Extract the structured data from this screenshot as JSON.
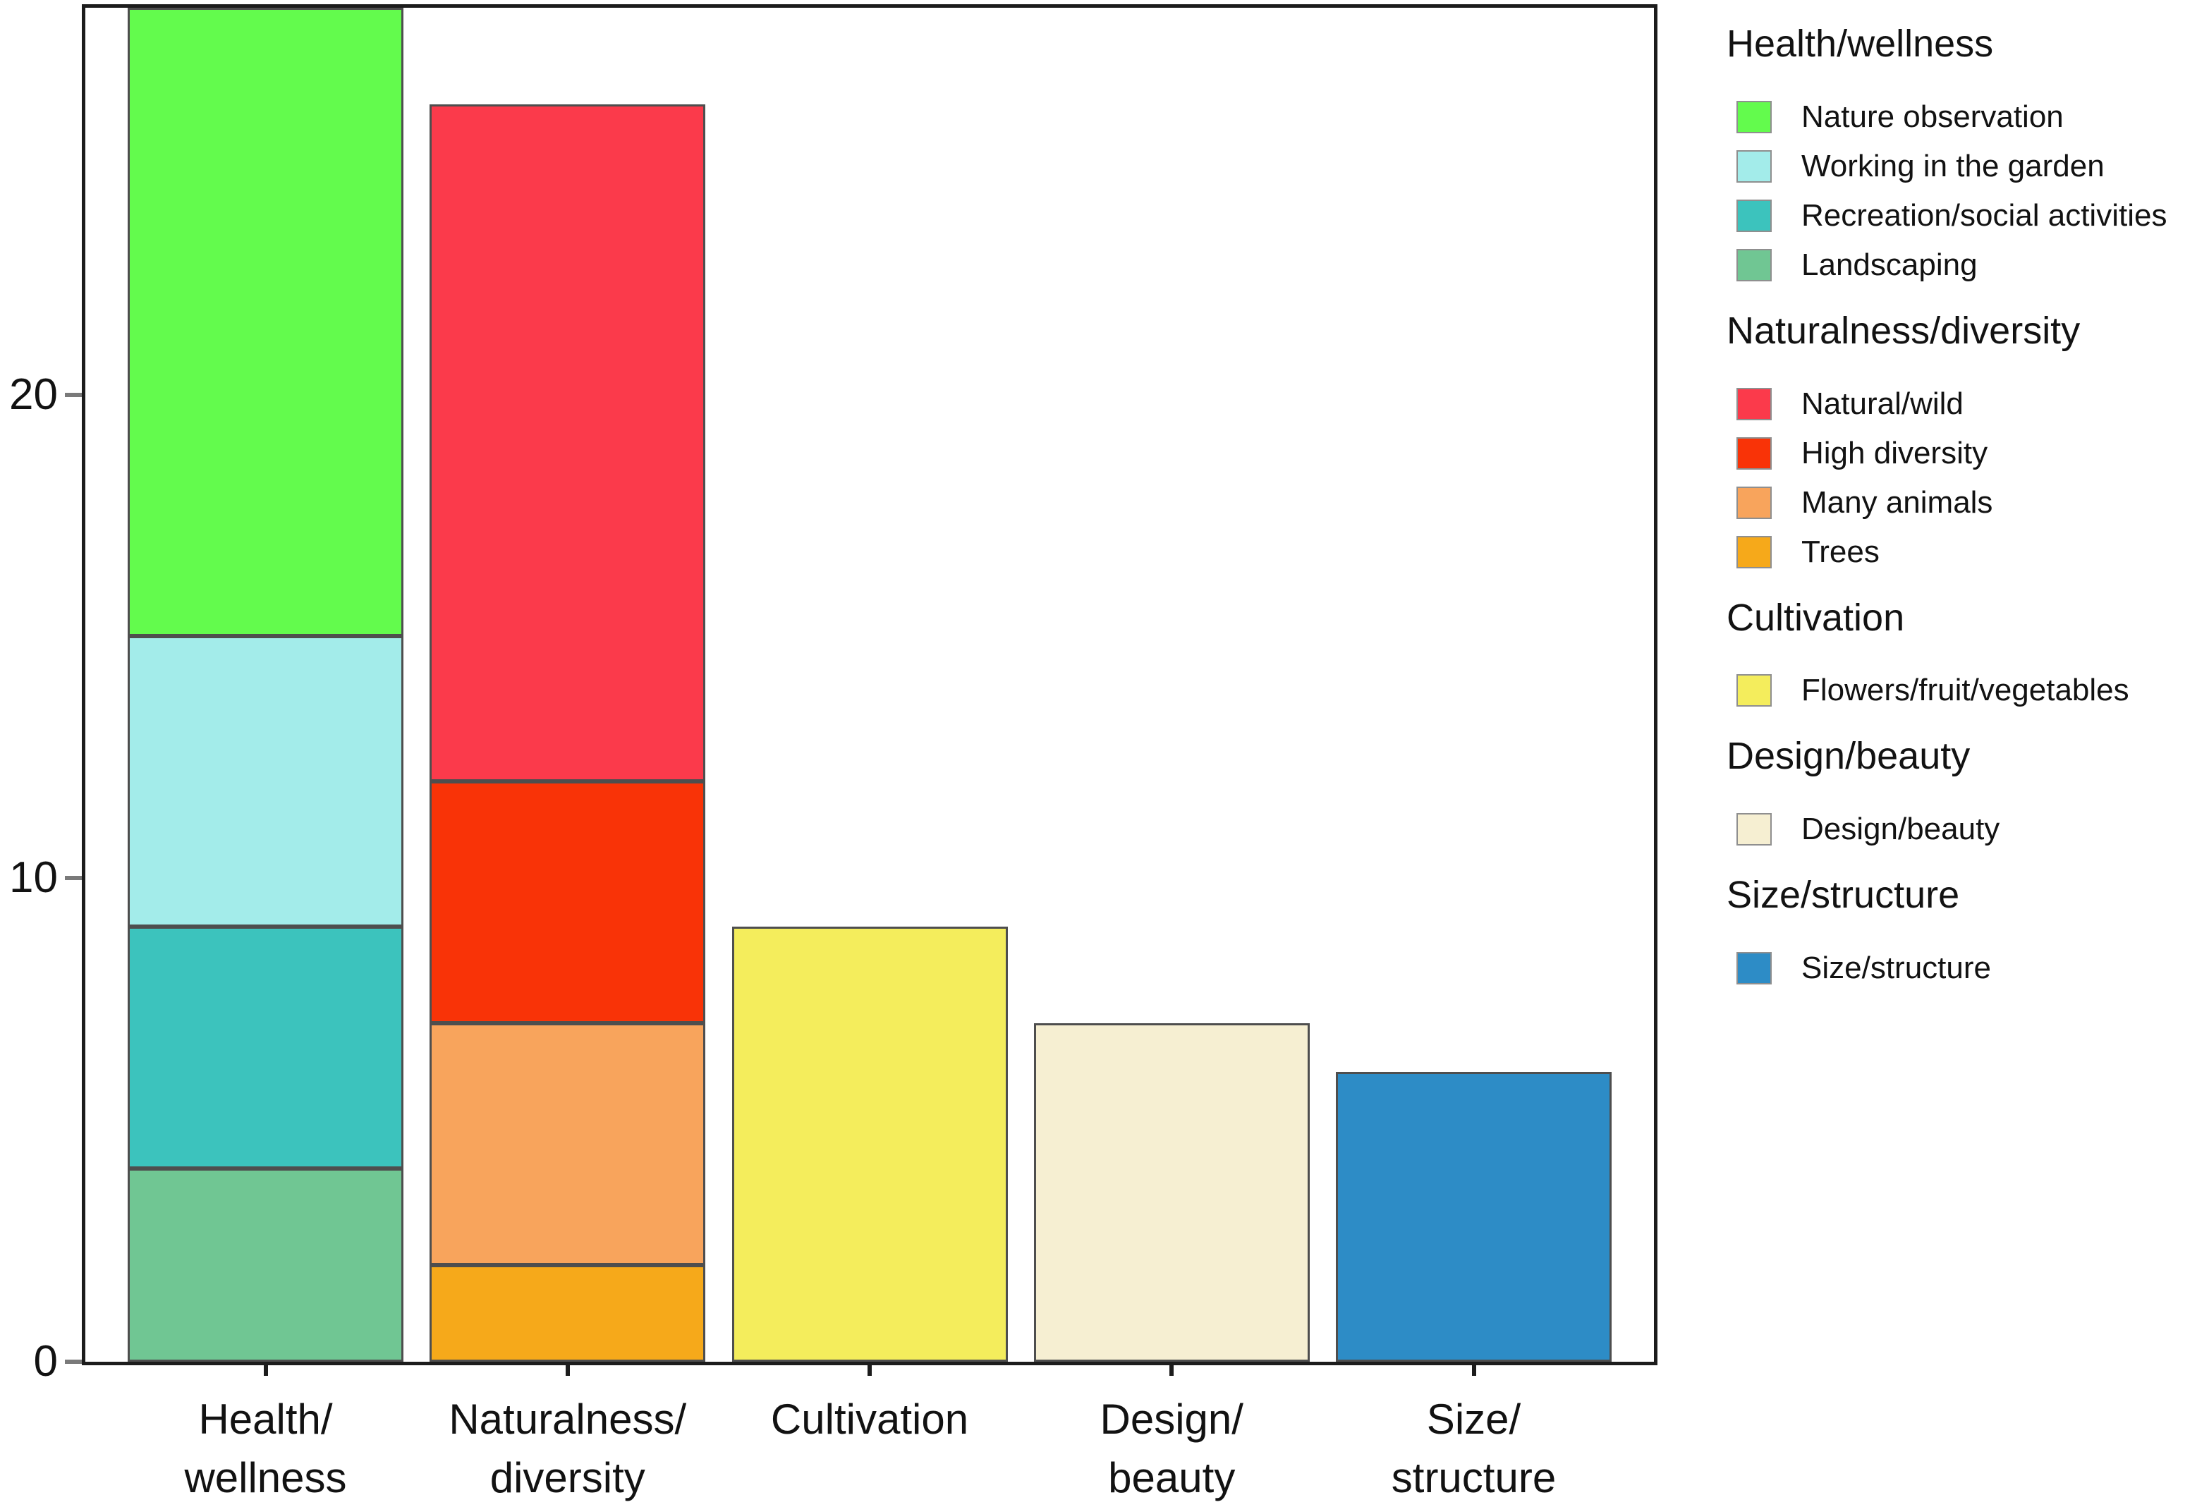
{
  "figure": {
    "background": "#ffffff",
    "axis_color": "#1c1c1c",
    "bar_edge_color": "#4e4e4e",
    "tick_mark_color": "#7a7a7a"
  },
  "chart_data": {
    "type": "bar",
    "stacked": true,
    "title": "",
    "xlabel": "",
    "ylabel": "",
    "ylim": [
      0,
      28
    ],
    "yticks": [
      0,
      10,
      20
    ],
    "ytick_labels": [
      "0",
      "10",
      "20"
    ],
    "grid": false,
    "legend_position": "right",
    "segment_order": "bottom-to-top",
    "categories": [
      {
        "label": "Health/wellness",
        "label_lines": [
          "Health/",
          "wellness"
        ],
        "total": 28,
        "segments": [
          {
            "name": "Landscaping",
            "value": 4,
            "color": "#70C693"
          },
          {
            "name": "Recreation/social activities",
            "value": 5,
            "color": "#3CC3BD"
          },
          {
            "name": "Working in the garden",
            "value": 6,
            "color": "#A3ECEA"
          },
          {
            "name": "Nature observation",
            "value": 13,
            "color": "#63FB4D"
          }
        ]
      },
      {
        "label": "Naturalness/diversity",
        "label_lines": [
          "Naturalness/",
          "diversity"
        ],
        "total": 26,
        "segments": [
          {
            "name": "Trees",
            "value": 2,
            "color": "#F6A91A"
          },
          {
            "name": "Many animals",
            "value": 5,
            "color": "#F8A45C"
          },
          {
            "name": "High diversity",
            "value": 5,
            "color": "#F93307"
          },
          {
            "name": "Natural/wild",
            "value": 14,
            "color": "#FB3A4B"
          }
        ]
      },
      {
        "label": "Cultivation",
        "label_lines": [
          "Cultivation"
        ],
        "total": 9,
        "segments": [
          {
            "name": "Flowers/fruit/vegetables",
            "value": 9,
            "color": "#F4ED5C"
          }
        ]
      },
      {
        "label": "Design/beauty",
        "label_lines": [
          "Design/",
          "beauty"
        ],
        "total": 7,
        "segments": [
          {
            "name": "Design/beauty",
            "value": 7,
            "color": "#F6EFD2"
          }
        ]
      },
      {
        "label": "Size/structure",
        "label_lines": [
          "Size/",
          "structure"
        ],
        "total": 6,
        "segments": [
          {
            "name": "Size/structure",
            "value": 6,
            "color": "#2D8CC6"
          }
        ]
      }
    ],
    "legend": [
      {
        "title": "Health/wellness",
        "items": [
          {
            "label": "Nature observation",
            "color": "#63FB4D"
          },
          {
            "label": "Working in the garden",
            "color": "#A3ECEA"
          },
          {
            "label": "Recreation/social activities",
            "color": "#3CC3BD"
          },
          {
            "label": "Landscaping",
            "color": "#70C693"
          }
        ]
      },
      {
        "title": "Naturalness/diversity",
        "items": [
          {
            "label": "Natural/wild",
            "color": "#FB3A4B"
          },
          {
            "label": "High diversity",
            "color": "#F93307"
          },
          {
            "label": "Many animals",
            "color": "#F8A45C"
          },
          {
            "label": "Trees",
            "color": "#F6A91A"
          }
        ]
      },
      {
        "title": "Cultivation",
        "items": [
          {
            "label": "Flowers/fruit/vegetables",
            "color": "#F4ED5C"
          }
        ]
      },
      {
        "title": "Design/beauty",
        "items": [
          {
            "label": "Design/beauty",
            "color": "#F6EFD2"
          }
        ]
      },
      {
        "title": "Size/structure",
        "items": [
          {
            "label": "Size/structure",
            "color": "#2D8CC6"
          }
        ]
      }
    ]
  }
}
